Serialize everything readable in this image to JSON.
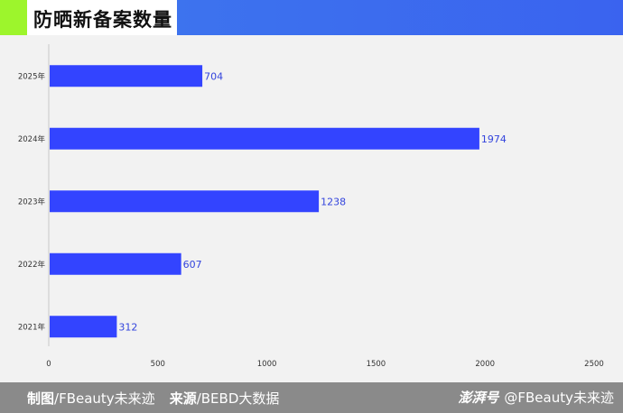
{
  "header": {
    "title": "防晒新备案数量"
  },
  "chart_data": {
    "type": "bar",
    "orientation": "horizontal",
    "title": "防晒新备案数量",
    "categories": [
      "2025年",
      "2024年",
      "2023年",
      "2022年",
      "2021年"
    ],
    "values": [
      704,
      1974,
      1238,
      607,
      312
    ],
    "x_ticks": [
      0,
      500,
      1000,
      1500,
      2000,
      2500
    ],
    "xlim": [
      0,
      2500
    ],
    "bar_color": "#3344ff",
    "label_color": "#3344dd",
    "grid": false
  },
  "footer": {
    "maker_label": "制图",
    "maker_value": "/FBeauty未来迹",
    "source_label": "来源",
    "source_value": "/BEBD大数据",
    "platform_mark": "澎湃号",
    "platform_handle": "@FBeauty未来迹"
  },
  "colors": {
    "accent": "#9df52c",
    "header_blue": "#3a6aef",
    "footer_gray": "#8a8a8a"
  }
}
